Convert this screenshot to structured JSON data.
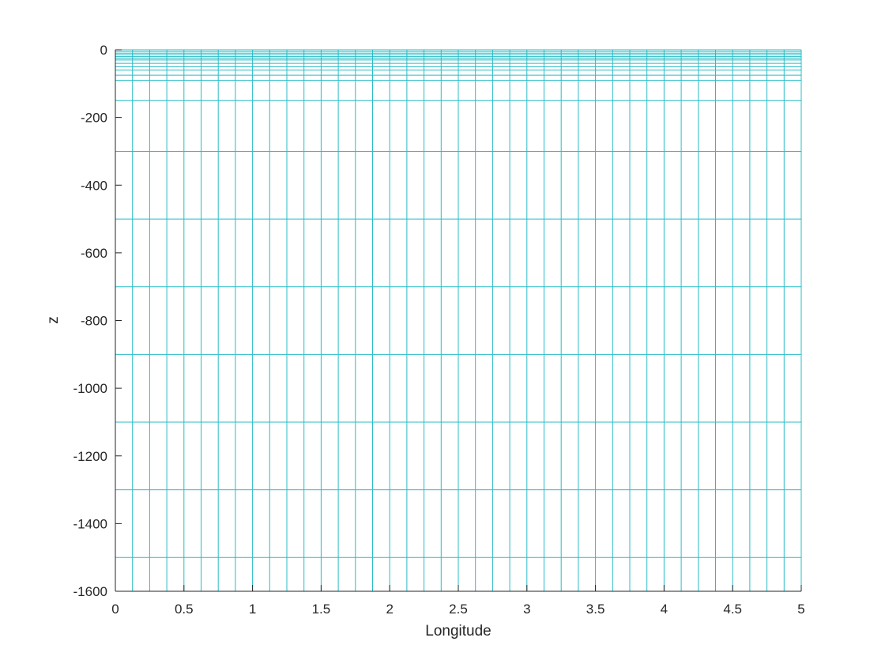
{
  "chart_data": {
    "type": "mesh",
    "title": "",
    "xlabel": "Longitude",
    "ylabel": "z",
    "xlim": [
      0,
      5
    ],
    "ylim": [
      -1600,
      0
    ],
    "x_ticks": [
      0,
      0.5,
      1,
      1.5,
      2,
      2.5,
      3,
      3.5,
      4,
      4.5,
      5
    ],
    "x_tick_labels": [
      "0",
      "0.5",
      "1",
      "1.5",
      "2",
      "2.5",
      "3",
      "3.5",
      "4",
      "4.5",
      "5"
    ],
    "y_ticks": [
      0,
      -200,
      -400,
      -600,
      -800,
      -1000,
      -1200,
      -1400,
      -1600
    ],
    "y_tick_labels": [
      "0",
      "-200",
      "-400",
      "-600",
      "-800",
      "-1000",
      "-1200",
      "-1400",
      "-1600"
    ],
    "mesh_lon": [
      0,
      0.125,
      0.25,
      0.375,
      0.5,
      0.625,
      0.75,
      0.875,
      1,
      1.125,
      1.25,
      1.375,
      1.5,
      1.625,
      1.75,
      1.875,
      2,
      2.125,
      2.25,
      2.375,
      2.5,
      2.625,
      2.75,
      2.875,
      3,
      3.125,
      3.25,
      3.375,
      3.5,
      3.625,
      3.75,
      3.875,
      4,
      4.125,
      4.25,
      4.375,
      4.5,
      4.625,
      4.75,
      4.875,
      5
    ],
    "mesh_z": [
      0,
      -5,
      -10,
      -15,
      -20,
      -25,
      -30,
      -40,
      -50,
      -60,
      -75,
      -90,
      -150,
      -300,
      -500,
      -700,
      -900,
      -1100,
      -1300,
      -1500,
      -1600
    ],
    "grid": false,
    "mesh_color": "#28bcc6",
    "axis_color": "#262626"
  }
}
